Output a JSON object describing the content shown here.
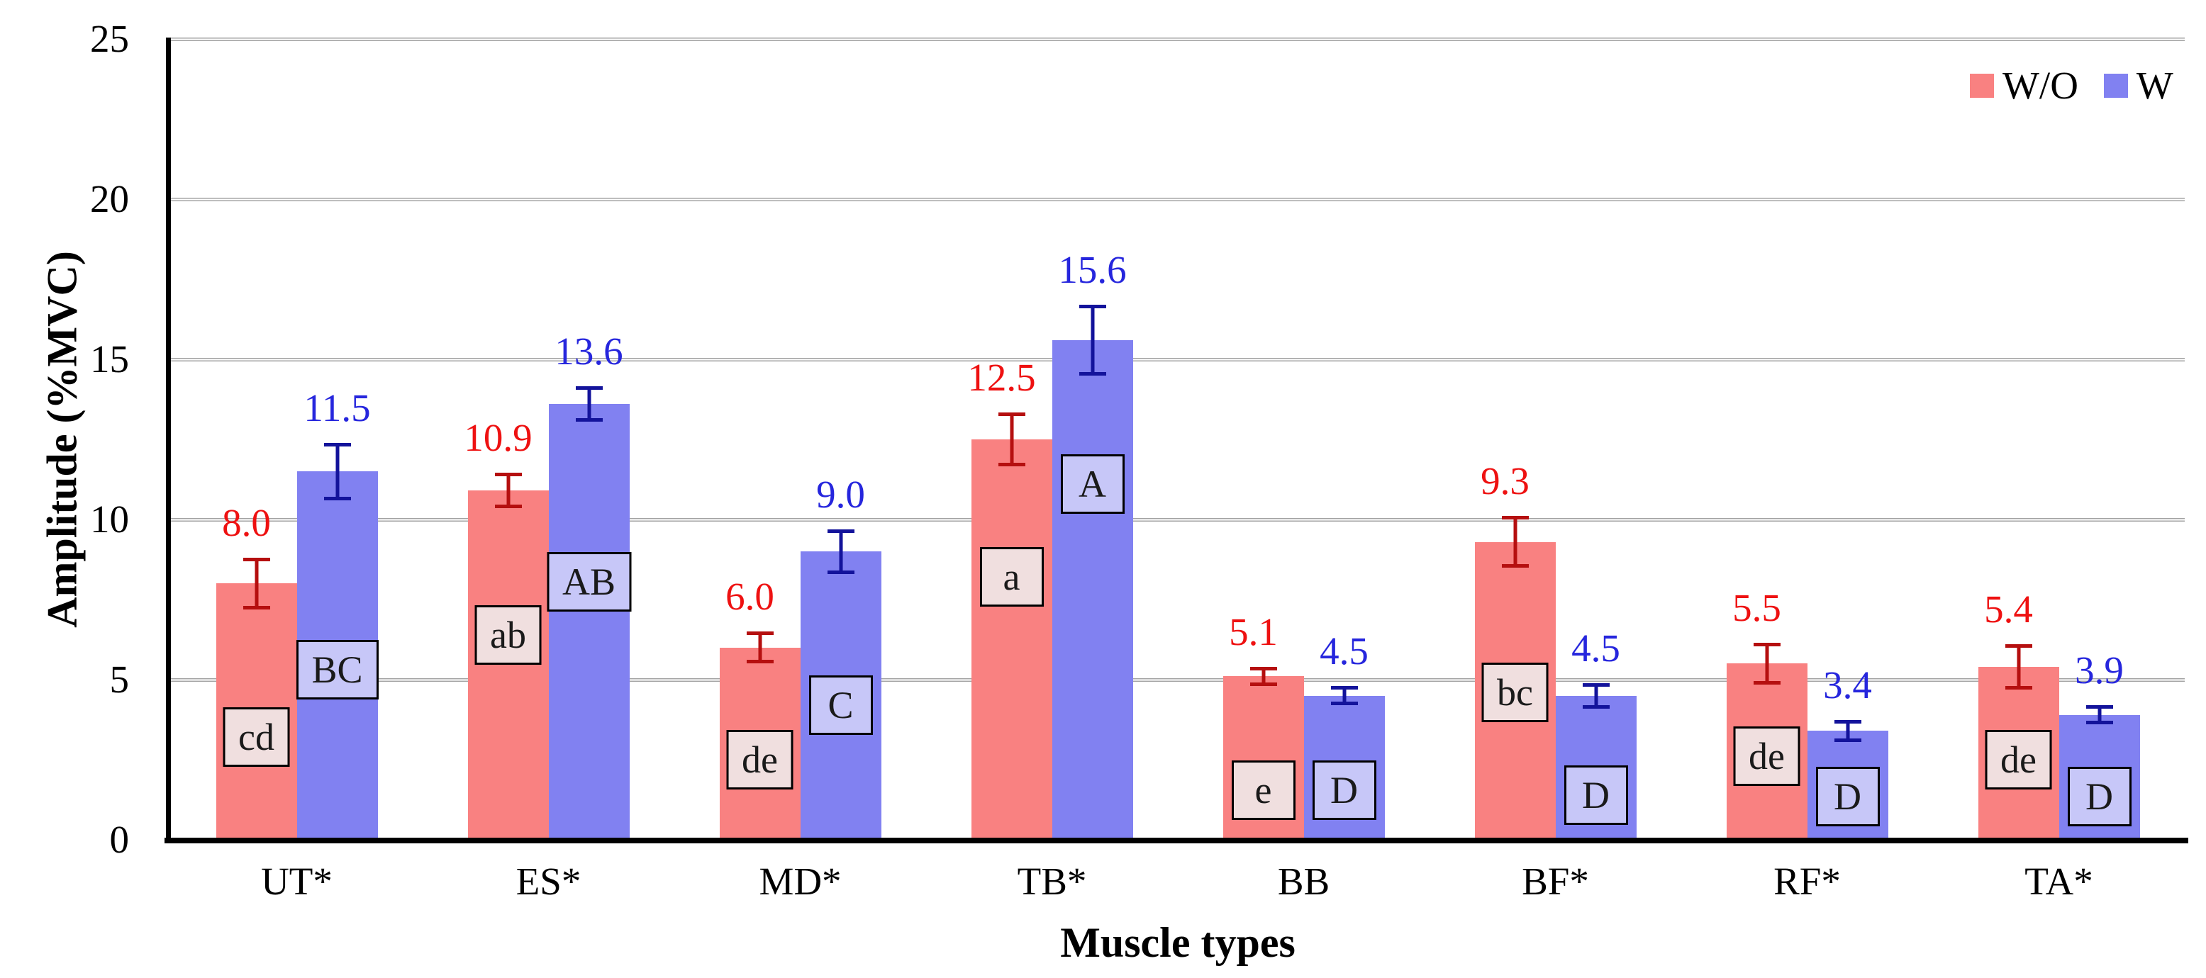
{
  "chart_data": {
    "type": "bar",
    "title": "",
    "xlabel": "Muscle types",
    "ylabel": "Amplitude (%MVC)",
    "ylim": [
      0,
      25
    ],
    "yticks": [
      0,
      5,
      10,
      15,
      20,
      25
    ],
    "grid": "horizontal",
    "legend_position": "top-right",
    "categories": [
      "UT*",
      "ES*",
      "MD*",
      "TB*",
      "BB",
      "BF*",
      "RF*",
      "TA*"
    ],
    "series": [
      {
        "name": "W/O",
        "bar_color": "#f98181",
        "error_color": "#b50f0f",
        "label_color": "#ee1111",
        "badge_fill": "#f0dfdf",
        "values": [
          8.0,
          10.9,
          6.0,
          12.5,
          5.1,
          9.3,
          5.5,
          5.4
        ],
        "errors": [
          0.8,
          0.55,
          0.5,
          0.85,
          0.3,
          0.8,
          0.65,
          0.7
        ],
        "sig_letters": [
          "cd",
          "ab",
          "de",
          "a",
          "e",
          "bc",
          "de",
          "de"
        ],
        "letter_y": [
          3.2,
          6.4,
          2.5,
          8.2,
          1.55,
          4.6,
          2.6,
          2.5
        ]
      },
      {
        "name": "W",
        "bar_color": "#8181f1",
        "error_color": "#13139b",
        "label_color": "#2626dd",
        "badge_fill": "#c7c7f8",
        "values": [
          11.5,
          13.6,
          9.0,
          15.6,
          4.5,
          4.5,
          3.4,
          3.9
        ],
        "errors": [
          0.9,
          0.55,
          0.7,
          1.1,
          0.3,
          0.4,
          0.35,
          0.3
        ],
        "sig_letters": [
          "BC",
          "AB",
          "C",
          "A",
          "D",
          "D",
          "D",
          "D"
        ],
        "letter_y": [
          5.3,
          8.05,
          4.2,
          11.1,
          1.55,
          1.4,
          1.35,
          1.35
        ]
      }
    ]
  }
}
